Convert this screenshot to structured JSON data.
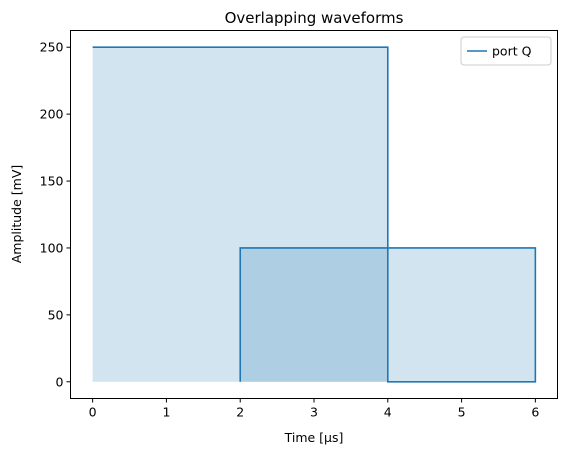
{
  "chart_data": {
    "type": "line",
    "title": "Overlapping waveforms",
    "xlabel": "Time [µs]",
    "ylabel": "Amplitude [mV]",
    "xlim": [
      -0.3,
      6.3
    ],
    "ylim": [
      -12.5,
      262.5
    ],
    "xticks": [
      0,
      1,
      2,
      3,
      4,
      5,
      6
    ],
    "yticks": [
      0,
      50,
      100,
      150,
      200,
      250
    ],
    "grid": false,
    "legend": {
      "placement": "top-right",
      "entries": [
        "port Q"
      ]
    },
    "colors": {
      "line": "#1f77b4",
      "fill": "#1f77b4"
    },
    "fill_alpha": 0.2,
    "series": [
      {
        "name": "port Q",
        "segments": [
          {
            "start": 0,
            "end": 4,
            "amplitude": 250
          },
          {
            "start": 2,
            "end": 6,
            "amplitude": 100
          }
        ],
        "line_points": [
          [
            2,
            0
          ],
          [
            2,
            100
          ],
          [
            6,
            100
          ],
          [
            6,
            0
          ],
          [
            4,
            0
          ],
          [
            4,
            250
          ],
          [
            0,
            250
          ]
        ]
      }
    ]
  }
}
